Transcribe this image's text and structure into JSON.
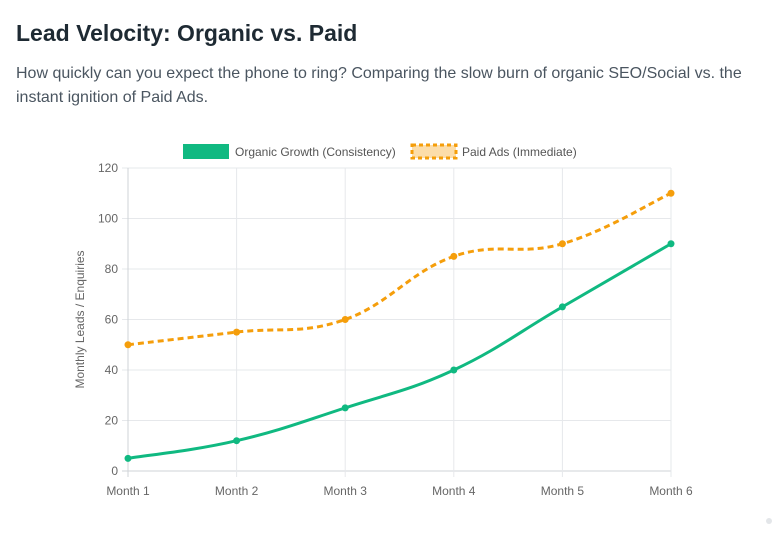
{
  "header": {
    "title": "Lead Velocity: Organic vs. Paid",
    "subtitle": "How quickly can you expect the phone to ring? Comparing the slow burn of organic SEO/Social vs. the instant ignition of Paid Ads."
  },
  "chart_data": {
    "type": "line",
    "title": "",
    "xlabel": "",
    "ylabel": "Monthly Leads / Enquiries",
    "categories": [
      "Month 1",
      "Month 2",
      "Month 3",
      "Month 4",
      "Month 5",
      "Month 6"
    ],
    "ylim": [
      0,
      120
    ],
    "yticks": [
      0,
      20,
      40,
      60,
      80,
      100,
      120
    ],
    "grid": true,
    "legend_position": "top-center",
    "series": [
      {
        "name": "Organic Growth (Consistency)",
        "values": [
          5,
          12,
          25,
          40,
          65,
          90
        ],
        "color": "#10b981",
        "style": "solid"
      },
      {
        "name": "Paid Ads (Immediate)",
        "values": [
          50,
          55,
          60,
          85,
          90,
          110
        ],
        "color": "#f59e0b",
        "style": "dashed"
      }
    ]
  }
}
